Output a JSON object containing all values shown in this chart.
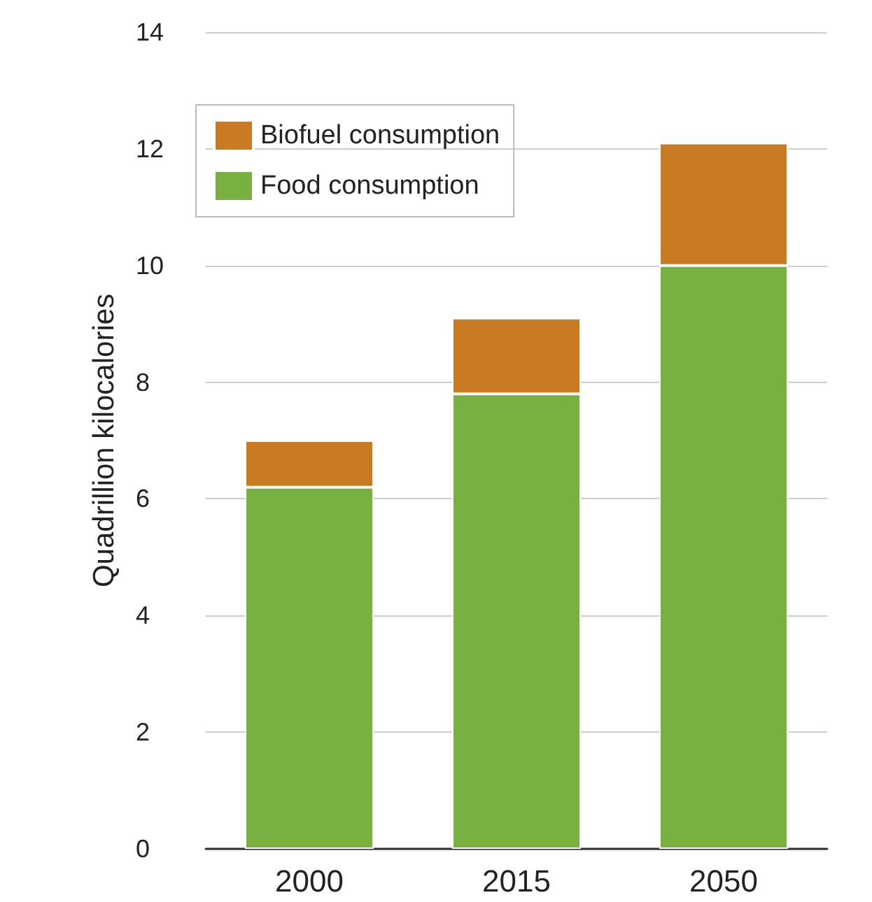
{
  "chart_data": {
    "type": "bar",
    "stacked": true,
    "ylabel": "Quadrillion kilocalories",
    "categories": [
      "2000",
      "2015",
      "2050"
    ],
    "series": [
      {
        "name": "Food consumption",
        "color": "#79b042",
        "values": [
          6.2,
          7.8,
          10
        ]
      },
      {
        "name": "Biofuel consumption",
        "color": "#c87b22",
        "values": [
          0.8,
          1.3,
          2.1
        ]
      }
    ],
    "ylim": [
      0,
      14
    ],
    "yticks": [
      0,
      2,
      4,
      6,
      8,
      10,
      12,
      14
    ],
    "grid": "y",
    "legend": "top left"
  }
}
